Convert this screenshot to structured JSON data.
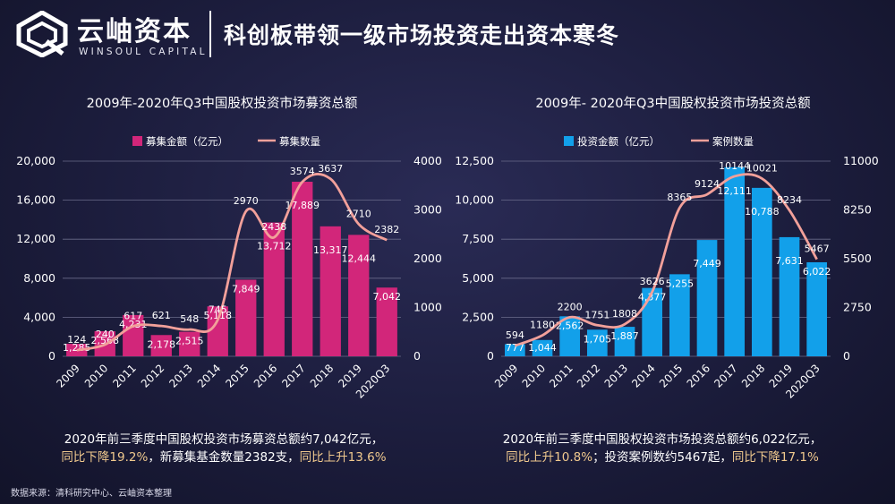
{
  "header": {
    "brand_cn": "云岫资本",
    "brand_en": "WINSOUL CAPITAL",
    "headline": "科创板带领一级市场投资走出资本寒冬"
  },
  "colors": {
    "magenta": "#d2267a",
    "blue": "#12a0ea",
    "line": "#f2a09a"
  },
  "chart_data": [
    {
      "type": "bar",
      "title": "2009年-2020年Q3中国股权投资市场募资总额",
      "categories": [
        "2009",
        "2010",
        "2011",
        "2012",
        "2013",
        "2014",
        "2015",
        "2016",
        "2017",
        "2018",
        "2019",
        "2020Q3"
      ],
      "series": [
        {
          "name": "募集金额（亿元）",
          "type": "bar",
          "axis": "left",
          "values": [
            1285,
            2568,
            4231,
            2178,
            2515,
            5118,
            7849,
            13712,
            17889,
            13317,
            12444,
            7042
          ],
          "labels": [
            "1,285",
            "2,568",
            "4,231",
            "2,178",
            "2,515",
            "5,118",
            "7,849",
            "13,712",
            "17,889",
            "13,317",
            "12,444",
            "7,042"
          ]
        },
        {
          "name": "募集数量",
          "type": "line",
          "axis": "right",
          "values": [
            124,
            240,
            617,
            621,
            548,
            745,
            2970,
            2438,
            3574,
            3637,
            2710,
            2382
          ],
          "labels": [
            "124",
            "240",
            "617",
            "621",
            "548",
            "745",
            "2970",
            "2438",
            "3574",
            "3637",
            "2710",
            "2382"
          ]
        }
      ],
      "y_left": {
        "min": 0,
        "max": 20000,
        "ticks": [
          "0",
          "4,000",
          "8,000",
          "12,000",
          "16,000",
          "20,000"
        ],
        "values": [
          0,
          4000,
          8000,
          12000,
          16000,
          20000
        ]
      },
      "y_right": {
        "min": 0,
        "max": 4000,
        "ticks": [
          "0",
          "1000",
          "2000",
          "3000",
          "4000"
        ],
        "values": [
          0,
          1000,
          2000,
          3000,
          4000
        ]
      },
      "grid": true,
      "legend": "top-center"
    },
    {
      "type": "bar",
      "title": "2009年- 2020年Q3中国股权投资市场投资总额",
      "categories": [
        "2009",
        "2010",
        "2011",
        "2012",
        "2013",
        "2014",
        "2015",
        "2016",
        "2017",
        "2018",
        "2019",
        "2020Q3"
      ],
      "series": [
        {
          "name": "投资金额（亿元）",
          "type": "bar",
          "axis": "left",
          "values": [
            777,
            1044,
            2562,
            1705,
            1887,
            4377,
            5255,
            7449,
            12111,
            10788,
            7631,
            6022
          ],
          "labels": [
            "777",
            "1,044",
            "2,562",
            "1,705",
            "1,887",
            "4,377",
            "5,255",
            "7,449",
            "12,111",
            "10,788",
            "7,631",
            "6,022"
          ]
        },
        {
          "name": "案例数量",
          "type": "line",
          "axis": "right",
          "values": [
            594,
            1180,
            2200,
            1751,
            1808,
            3626,
            8365,
            9124,
            10144,
            10021,
            8234,
            5467
          ],
          "labels": [
            "594",
            "1180",
            "2200",
            "1751",
            "1808",
            "3626",
            "8365",
            "9124",
            "10144",
            "10021",
            "8234",
            "5467"
          ]
        }
      ],
      "y_left": {
        "min": 0,
        "max": 12500,
        "ticks": [
          "0",
          "2,500",
          "5,000",
          "7,500",
          "10,000",
          "12,500"
        ],
        "values": [
          0,
          2500,
          5000,
          7500,
          10000,
          12500
        ]
      },
      "y_right": {
        "min": 0,
        "max": 11000,
        "ticks": [
          "0",
          "2750",
          "5500",
          "8250",
          "11000"
        ],
        "values": [
          0,
          2750,
          5500,
          8250,
          11000
        ]
      },
      "grid": true,
      "legend": "top-center"
    }
  ],
  "summary_left": {
    "line1": "2020年前三季度中国股权投资市场募资总额约7,042亿元，",
    "hl1": "同比下降19.2%",
    "mid": "，新募集基金数量2382支，",
    "hl2": "同比上升13.6%"
  },
  "summary_right": {
    "line1": "2020年前三季度中国股权投资市场投资总额约6,022亿元，",
    "hl1": "同比上升10.8%",
    "mid": "；投资案例数约5467起，",
    "hl2": "同比下降17.1%"
  },
  "source": "数据来源：清科研究中心、云岫资本整理"
}
